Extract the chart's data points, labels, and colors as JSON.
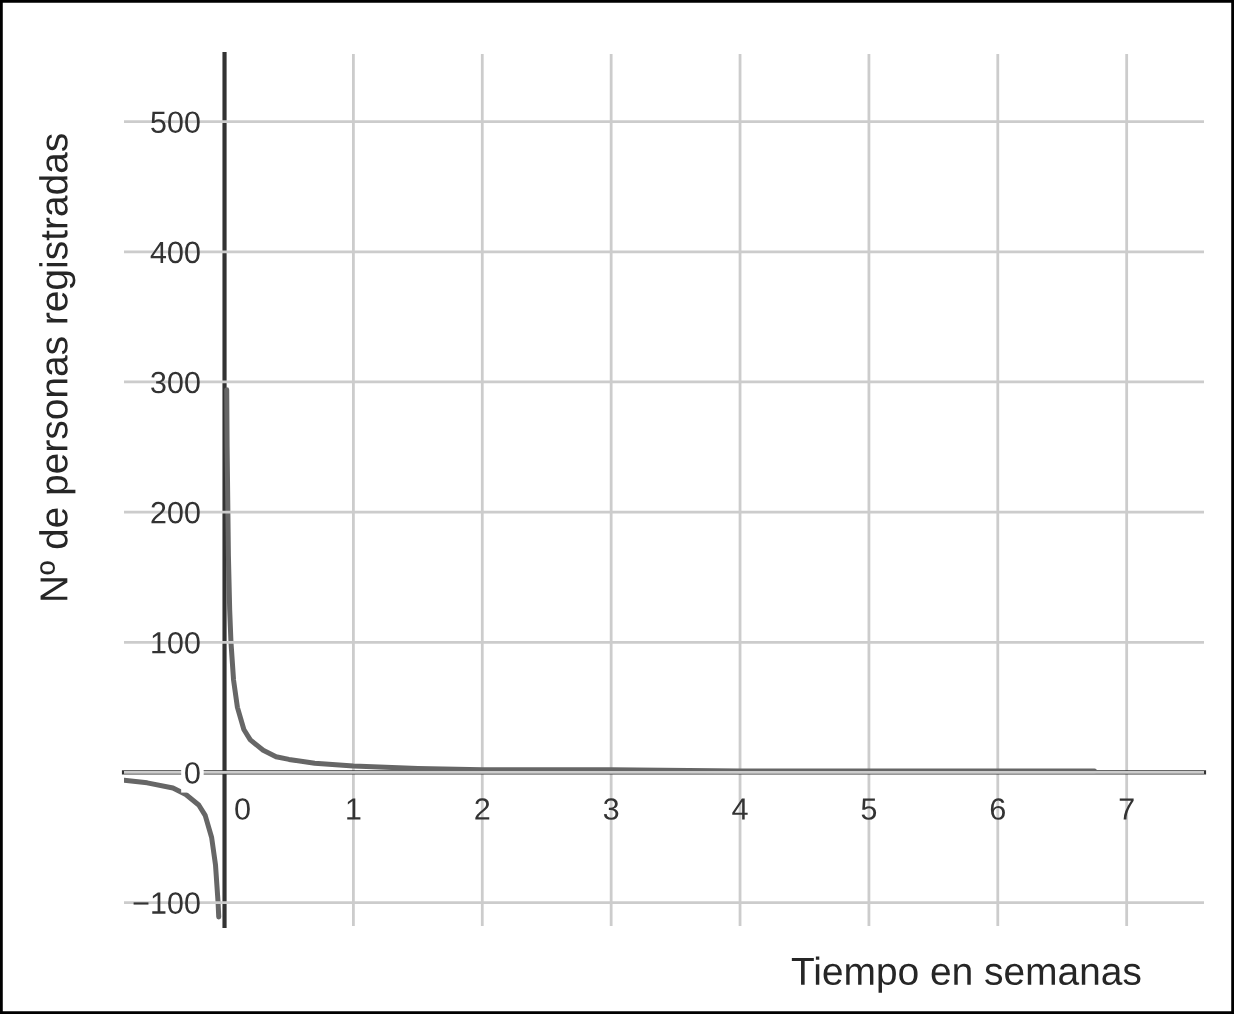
{
  "chart_data": {
    "type": "line",
    "xlabel": "Tiempo en semanas",
    "ylabel": "Nº de personas registradas",
    "series": [
      {
        "color": "#666666",
        "x": [
          -0.78,
          -0.6,
          -0.4,
          -0.3,
          -0.2,
          -0.15,
          -0.1,
          -0.07,
          -0.05,
          -0.045,
          -0.02,
          0.017,
          0.02,
          0.03,
          0.04,
          0.05,
          0.07,
          0.1,
          0.15,
          0.2,
          0.3,
          0.4,
          0.5,
          0.7,
          1,
          1.5,
          2,
          3,
          4,
          5,
          6,
          6.75
        ],
        "values": [
          -6,
          -8,
          -12,
          -17,
          -25,
          -33,
          -50,
          -71,
          -100,
          -111,
          null,
          294,
          250,
          167,
          125,
          100,
          71,
          50,
          33,
          25,
          17,
          12,
          10,
          7,
          5,
          3,
          2,
          2,
          1,
          1,
          1,
          1
        ]
      }
    ],
    "xlim": [
      -0.78,
      7.6
    ],
    "ylim": [
      -118,
      552
    ],
    "xticks": [
      0,
      1,
      2,
      3,
      4,
      5,
      6,
      7
    ],
    "yticks": [
      {
        "value": -100,
        "label": "−100"
      },
      0,
      100,
      200,
      300,
      400,
      500
    ],
    "grid": true,
    "line_style": "solid",
    "marker": "none"
  }
}
